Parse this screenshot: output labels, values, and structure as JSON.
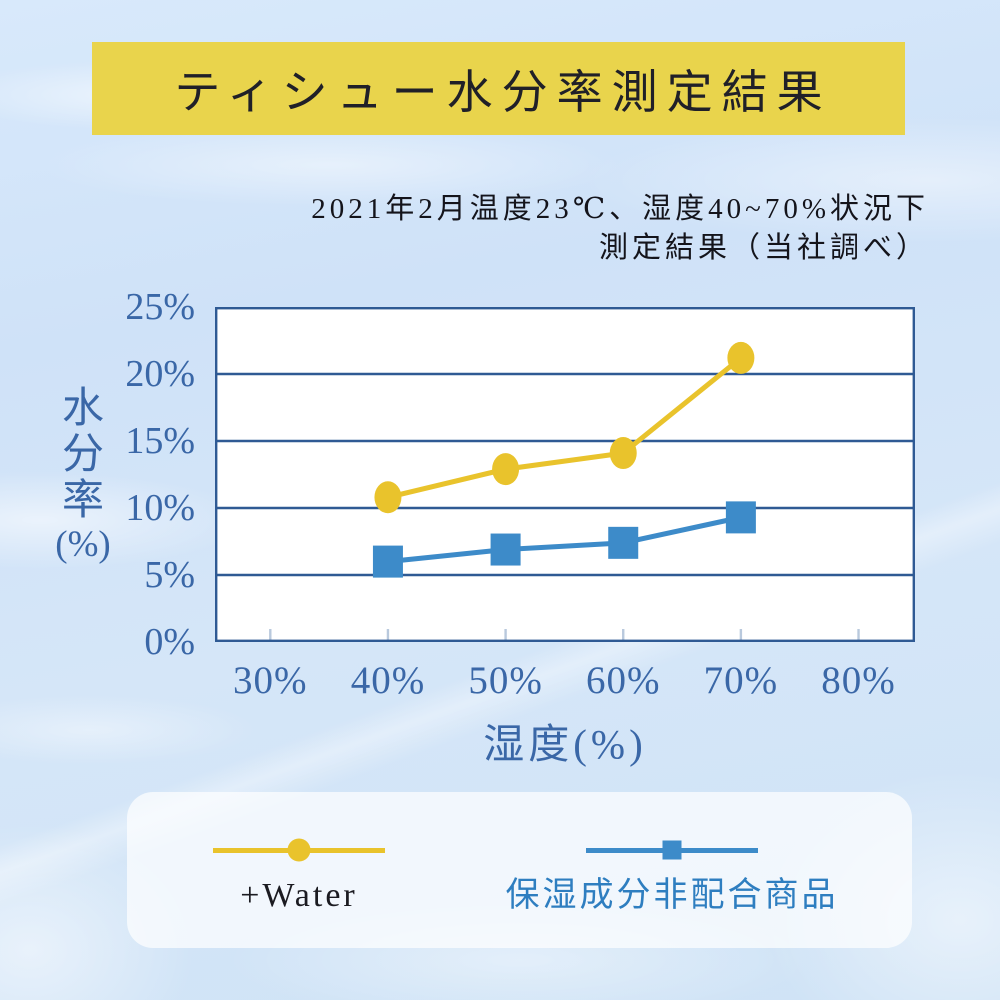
{
  "header": {
    "title": "ティシュー水分率測定結果",
    "banner_color": "#e9d44c",
    "title_color": "#202028",
    "subtitle_line1": "2021年2月温度23℃、湿度40~70%状況下",
    "subtitle_line2": "測定結果（当社調べ）"
  },
  "chart_data": {
    "type": "line",
    "title": "ティシュー水分率測定結果",
    "x": [
      40,
      50,
      60,
      70
    ],
    "series": [
      {
        "name": "+Water",
        "marker": "circle",
        "color": "#e9c32c",
        "values": [
          10.8,
          12.9,
          14.1,
          21.2
        ]
      },
      {
        "name": "保湿成分非配合商品",
        "marker": "square",
        "color": "#3d8bc9",
        "values": [
          6.0,
          6.9,
          7.4,
          9.3
        ]
      }
    ],
    "xlabel": "湿度(%)",
    "ylabel": "水分率",
    "ylabel_unit": "(%)",
    "x_tick_values": [
      30,
      40,
      50,
      60,
      70,
      80
    ],
    "x_tick_labels": [
      "30%",
      "40%",
      "50%",
      "60%",
      "70%",
      "80%"
    ],
    "y_tick_values": [
      0,
      5,
      10,
      15,
      20,
      25
    ],
    "y_tick_labels": [
      "0%",
      "5%",
      "10%",
      "15%",
      "20%",
      "25%"
    ],
    "xlim": [
      25.3,
      84.8
    ],
    "ylim": [
      0,
      25
    ],
    "grid": "horizontal",
    "grid_color": "#2f5a94",
    "tick_mark_color": "#b9c9dd",
    "axis_text_color": "#3a67a7",
    "plot_bg": "#ffffff",
    "legend_position": "bottom"
  },
  "legend": {
    "items": [
      {
        "label": "+Water",
        "marker": "circle",
        "color": "#e9c32c",
        "label_color": "#1b1b21"
      },
      {
        "label": "保湿成分非配合商品",
        "marker": "square",
        "color": "#3d8bc9",
        "label_color": "#2e7ec0"
      }
    ]
  }
}
